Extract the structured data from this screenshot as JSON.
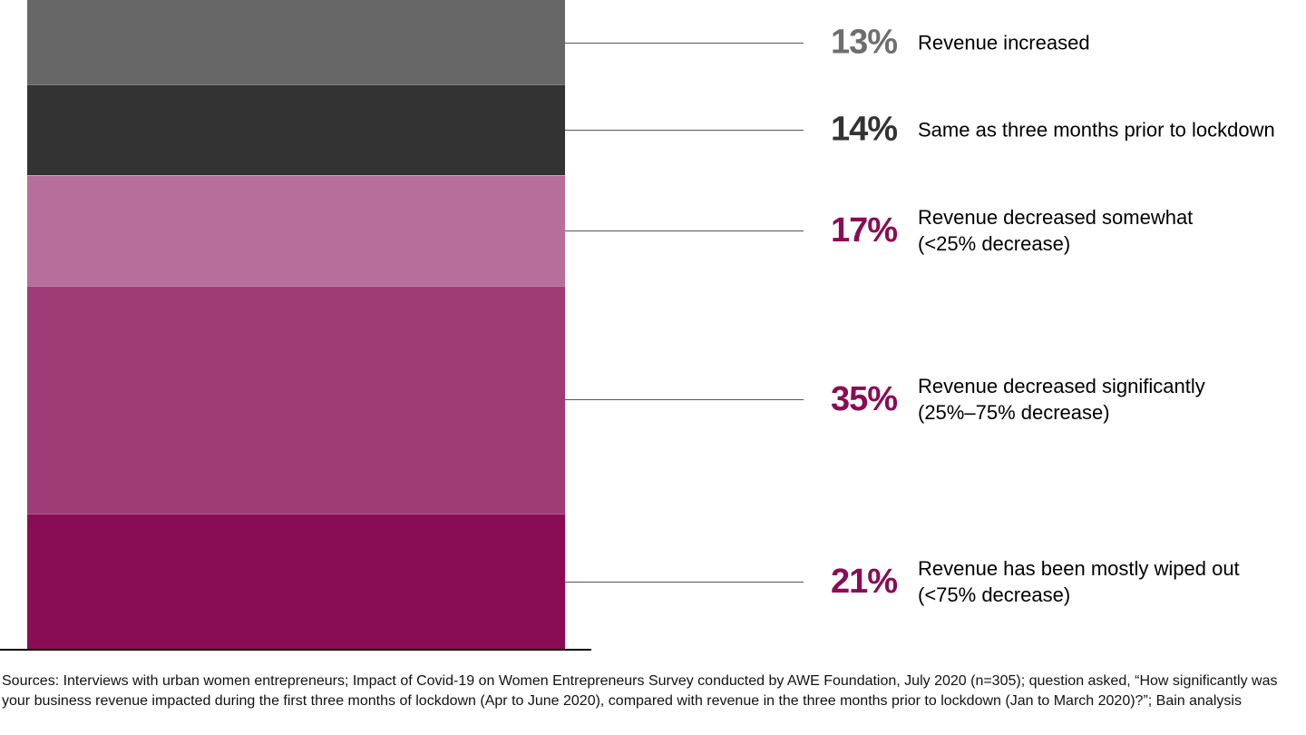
{
  "chart_data": {
    "type": "bar",
    "stacked": true,
    "ylim": [
      0,
      100
    ],
    "grid": false,
    "series": [
      {
        "label": "Revenue increased",
        "label_lines": [
          "Revenue increased"
        ],
        "value": 13,
        "value_label": "13%",
        "color": "#676767",
        "label_color": "#6e6e6e"
      },
      {
        "label": "Same as three months prior to lockdown",
        "label_lines": [
          "Same as three months prior to lockdown"
        ],
        "value": 14,
        "value_label": "14%",
        "color": "#333333",
        "label_color": "#333333"
      },
      {
        "label": "Revenue decreased somewhat (<25% decrease)",
        "label_lines": [
          "Revenue decreased somewhat",
          "(<25% decrease)"
        ],
        "value": 17,
        "value_label": "17%",
        "color": "#b86e9a",
        "label_color": "#8a0c55"
      },
      {
        "label": "Revenue decreased significantly (25%–75% decrease)",
        "label_lines": [
          "Revenue decreased significantly",
          "(25%–75% decrease)"
        ],
        "value": 35,
        "value_label": "35%",
        "color": "#9f3c78",
        "label_color": "#8a0c55"
      },
      {
        "label": "Revenue has been mostly wiped out (<75% decrease)",
        "label_lines": [
          "Revenue has been mostly wiped out",
          "(<75% decrease)"
        ],
        "value": 21,
        "value_label": "21%",
        "color": "#8a0c55",
        "label_color": "#8a0c55"
      }
    ]
  },
  "footer": {
    "sources": "Sources: Interviews with urban women entrepreneurs; Impact of Covid-19 on Women Entrepreneurs Survey conducted by AWE Foundation, July 2020 (n=305); question asked, “How significantly was your business revenue impacted during the first three months of lockdown (Apr to June 2020), compared with revenue in the three months prior to lockdown (Jan to March 2020)?”; Bain analysis"
  }
}
